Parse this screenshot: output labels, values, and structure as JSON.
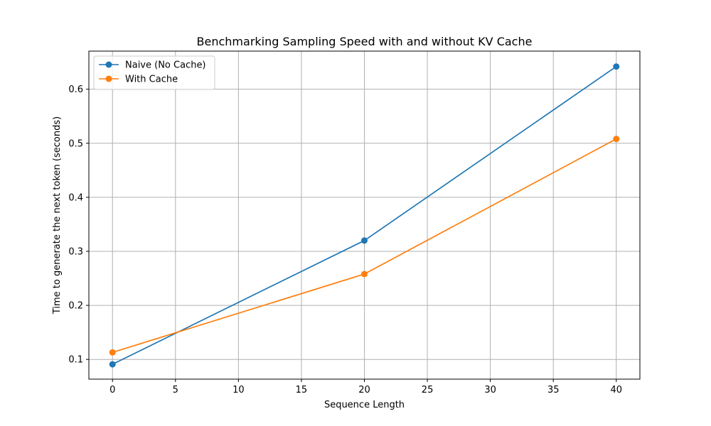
{
  "chart_data": {
    "type": "line",
    "title": "Benchmarking Sampling Speed with and without KV Cache",
    "xlabel": "Sequence Length",
    "ylabel": "Time to generate the next token (seconds)",
    "xlim": [
      -1.875,
      41.875
    ],
    "ylim": [
      0.0635,
      0.6705
    ],
    "xticks": [
      0,
      5,
      10,
      15,
      20,
      25,
      30,
      35,
      40
    ],
    "yticks": [
      0.1,
      0.2,
      0.3,
      0.4,
      0.5,
      0.6
    ],
    "xtick_labels": [
      "0",
      "5",
      "10",
      "15",
      "20",
      "25",
      "30",
      "35",
      "40"
    ],
    "ytick_labels": [
      "0.1",
      "0.2",
      "0.3",
      "0.4",
      "0.5",
      "0.6"
    ],
    "grid": true,
    "legend_position": "upper-left",
    "x": [
      0,
      20,
      40
    ],
    "series": [
      {
        "name": "Naive (No Cache)",
        "values": [
          0.091,
          0.32,
          0.642
        ],
        "color": "#1f77b4"
      },
      {
        "name": "With Cache",
        "values": [
          0.113,
          0.258,
          0.508
        ],
        "color": "#ff7f0e"
      }
    ]
  }
}
